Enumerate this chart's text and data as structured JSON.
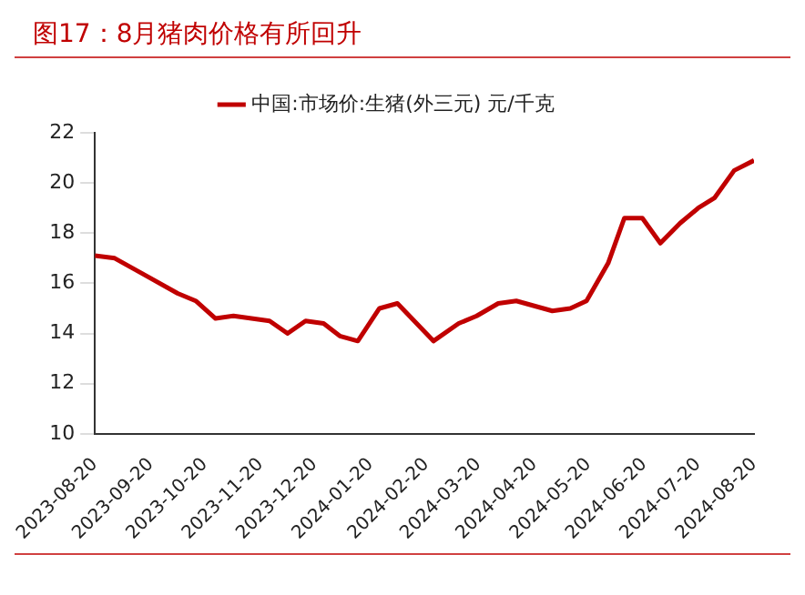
{
  "chart_data": {
    "type": "line",
    "title": "图17：8月猪肉价格有所回升",
    "x": [
      "2023-08-20",
      "2023-08-31",
      "2023-09-15",
      "2023-10-05",
      "2023-10-15",
      "2023-10-26",
      "2023-11-05",
      "2023-11-25",
      "2023-12-05",
      "2023-12-15",
      "2023-12-25",
      "2024-01-03",
      "2024-01-13",
      "2024-01-25",
      "2024-02-04",
      "2024-02-24",
      "2024-03-09",
      "2024-03-19",
      "2024-03-31",
      "2024-04-10",
      "2024-04-30",
      "2024-05-10",
      "2024-05-19",
      "2024-05-31",
      "2024-06-09",
      "2024-06-19",
      "2024-06-29",
      "2024-07-10",
      "2024-07-20",
      "2024-07-29",
      "2024-08-09",
      "2024-08-20"
    ],
    "series": [
      {
        "name": "中国:市场价:生猪(外三元) 元/千克",
        "color": "#c00000",
        "values": [
          17.1,
          17.0,
          16.4,
          15.6,
          15.3,
          14.6,
          14.7,
          14.5,
          14.0,
          14.5,
          14.4,
          13.9,
          13.7,
          15.0,
          15.2,
          13.7,
          14.4,
          14.7,
          15.2,
          15.3,
          14.9,
          15.0,
          15.3,
          16.8,
          18.6,
          18.6,
          17.6,
          18.4,
          19.0,
          19.4,
          20.5,
          20.9
        ]
      }
    ],
    "xlim": [
      "2023-08-20",
      "2024-08-20"
    ],
    "xticks": [
      "2023-08-20",
      "2023-09-20",
      "2023-10-20",
      "2023-11-20",
      "2023-12-20",
      "2024-01-20",
      "2024-02-20",
      "2024-03-20",
      "2024-04-20",
      "2024-05-20",
      "2024-06-20",
      "2024-07-20",
      "2024-08-20"
    ],
    "ylim": [
      10,
      22
    ],
    "yticks": [
      10,
      12,
      14,
      16,
      18,
      20,
      22
    ],
    "grid": false,
    "legend": "top",
    "marker": "none",
    "line_style": "solid"
  }
}
